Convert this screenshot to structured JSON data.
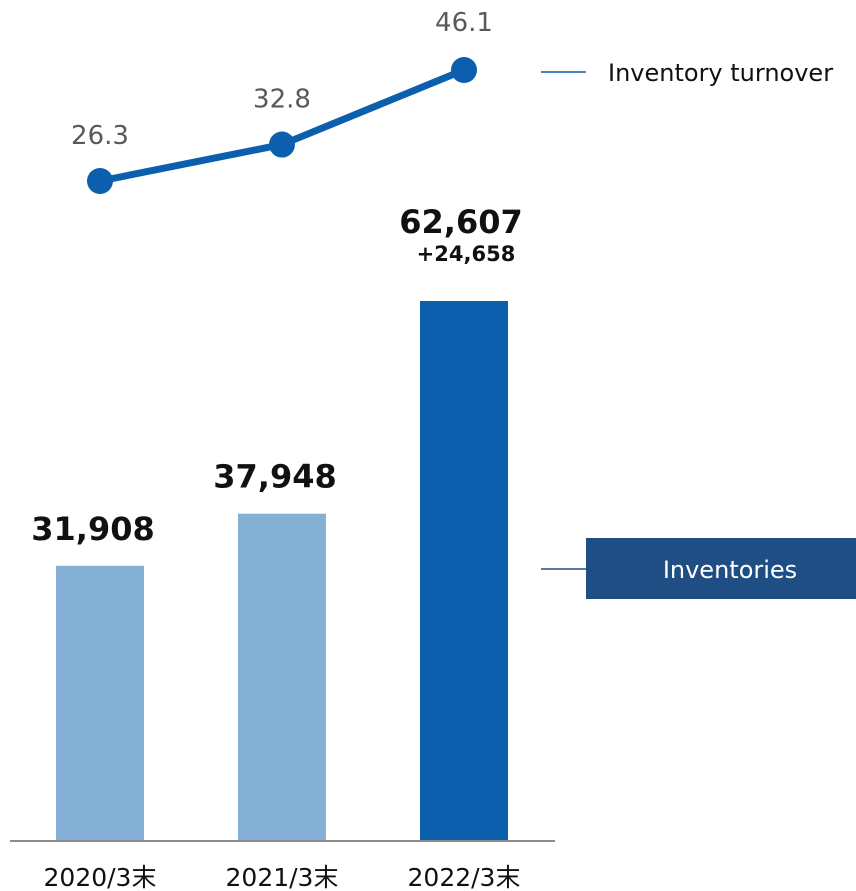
{
  "chart_data": {
    "type": "bar",
    "categories": [
      "2020/3末",
      "2021/3末",
      "2022/3末"
    ],
    "series": [
      {
        "name": "Inventories",
        "kind": "bar",
        "values": [
          31908,
          37948,
          62607
        ],
        "value_labels": [
          "31,908",
          "37,948",
          "62,607"
        ],
        "colors": [
          "#84b0d6",
          "#84b0d6",
          "#0b5fad"
        ]
      },
      {
        "name": "Inventory turnover",
        "kind": "line",
        "values": [
          26.3,
          32.8,
          46.1
        ],
        "value_labels": [
          "26.3",
          "32.8",
          "46.1"
        ],
        "color": "#0b5fad"
      }
    ],
    "annotations": [
      {
        "category": "2022/3末",
        "text": "+24,658"
      }
    ],
    "legend": {
      "line_label": "Inventory turnover",
      "bar_label": "Inventories",
      "placement": "right"
    },
    "colors": {
      "bar_light": "#84b0d6",
      "bar_dark": "#0b5fad",
      "line": "#0b5fad",
      "legend_box": "#1f4e85",
      "axis": "#8c8c8c"
    }
  }
}
